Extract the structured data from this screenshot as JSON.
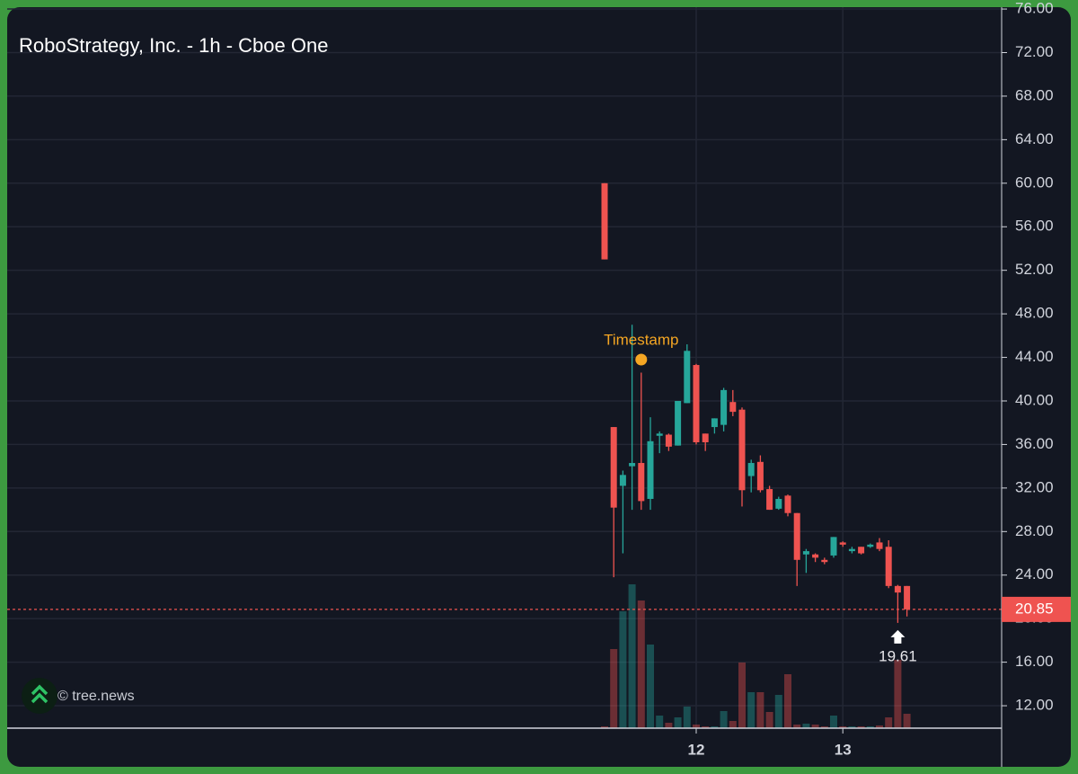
{
  "chart_data": {
    "type": "candlestick",
    "title": "RoboStrategy, Inc. - 1h - Cboe One",
    "watermark": "© tree.news",
    "categories": [
      null,
      null,
      null,
      null,
      null,
      null,
      null,
      null,
      null,
      null,
      "12",
      null,
      null,
      null,
      null,
      null,
      null,
      null,
      null,
      null,
      null,
      null,
      null,
      null,
      null,
      null,
      "13",
      null,
      null,
      null,
      null,
      null,
      null,
      null
    ],
    "open": [
      60,
      37.6,
      32.2,
      34.0,
      34.3,
      31.0,
      36.8,
      36.9,
      35.9,
      39.8,
      43.3,
      37.0,
      37.6,
      37.8,
      39.9,
      39.2,
      33.1,
      34.4,
      31.9,
      30.1,
      31.3,
      29.7,
      25.9,
      25.9,
      25.4,
      25.8,
      27.0,
      26.2,
      26.6,
      26.6,
      27.0,
      26.6,
      23.0,
      23.0
    ],
    "high": [
      60,
      37.6,
      33.6,
      47.0,
      42.6,
      38.5,
      37.2,
      37.0,
      40.0,
      45.2,
      43.4,
      37.0,
      38.4,
      41.2,
      41.0,
      39.4,
      34.6,
      35.0,
      32.2,
      31.2,
      31.4,
      29.7,
      26.4,
      26.0,
      25.6,
      27.5,
      27.1,
      26.6,
      26.6,
      26.9,
      27.4,
      27.2,
      23.1,
      23.0
    ],
    "low": [
      53,
      23.8,
      26.0,
      30.0,
      30.0,
      30.0,
      35.2,
      35.4,
      35.9,
      39.8,
      36.0,
      35.4,
      37.0,
      37.2,
      38.6,
      30.3,
      31.6,
      31.6,
      30.0,
      30.0,
      29.4,
      23.0,
      24.2,
      25.2,
      25.0,
      25.6,
      26.6,
      26.0,
      25.9,
      26.5,
      26.2,
      22.8,
      19.61,
      20.2
    ],
    "close": [
      53,
      30.2,
      33.2,
      34.3,
      30.8,
      36.3,
      37.0,
      35.8,
      40.0,
      44.6,
      36.2,
      36.2,
      38.4,
      41.0,
      39.0,
      31.8,
      34.3,
      31.8,
      30.0,
      31.0,
      29.7,
      25.4,
      26.2,
      25.6,
      25.2,
      27.5,
      26.8,
      26.4,
      26.0,
      26.8,
      26.4,
      23.0,
      22.4,
      20.85
    ],
    "volume": [
      2,
      88,
      130,
      160,
      142,
      93,
      14,
      6,
      12,
      24,
      4,
      2,
      2,
      19,
      8,
      73,
      40,
      40,
      18,
      37,
      60,
      4,
      5,
      4,
      2,
      14,
      2,
      2,
      2,
      2,
      3,
      12,
      76,
      16
    ],
    "up_color": "#26a69a",
    "down_color": "#ef5350",
    "ylim": [
      9.94,
      76.17
    ],
    "yticks": [
      {
        "value": 12,
        "label": "12.00"
      },
      {
        "value": 16,
        "label": "16.00"
      },
      {
        "value": 20,
        "label": "20.00"
      },
      {
        "value": 24,
        "label": "24.00"
      },
      {
        "value": 28,
        "label": "28.00"
      },
      {
        "value": 32,
        "label": "32.00"
      },
      {
        "value": 36,
        "label": "36.00"
      },
      {
        "value": 40,
        "label": "40.00"
      },
      {
        "value": 44,
        "label": "44.00"
      },
      {
        "value": 48,
        "label": "48.00"
      },
      {
        "value": 52,
        "label": "52.00"
      },
      {
        "value": 56,
        "label": "56.00"
      },
      {
        "value": 60,
        "label": "60.00"
      },
      {
        "value": 64,
        "label": "64.00"
      },
      {
        "value": 68,
        "label": "68.00"
      },
      {
        "value": 72,
        "label": "72.00"
      },
      {
        "value": 76,
        "label": "76.00"
      }
    ],
    "grid": true,
    "last_price": 20.85,
    "low_marker": 19.61,
    "annotation": {
      "text": "Timestamp",
      "value": 43.8,
      "color": "#f5a623"
    }
  }
}
